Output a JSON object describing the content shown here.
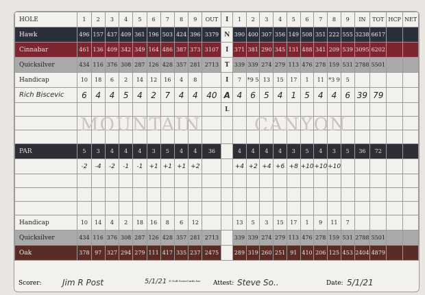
{
  "header": {
    "label": "HOLE",
    "front": [
      "1",
      "2",
      "3",
      "4",
      "5",
      "6",
      "7",
      "8",
      "9"
    ],
    "out": "OUT",
    "back": [
      "1",
      "2",
      "3",
      "4",
      "5",
      "6",
      "7",
      "8",
      "9"
    ],
    "in": "IN",
    "tot": "TOT",
    "hcp": "HCP",
    "net": "NET"
  },
  "initial": [
    "I",
    "N",
    "I",
    "T",
    "I",
    "A",
    "L"
  ],
  "tees_top": [
    {
      "cls": "hawk",
      "name": "Hawk",
      "front": [
        "496",
        "157",
        "437",
        "409",
        "361",
        "196",
        "503",
        "424",
        "396"
      ],
      "out": "3379",
      "back": [
        "390",
        "400",
        "307",
        "356",
        "149",
        "508",
        "351",
        "222",
        "555"
      ],
      "in": "3238",
      "tot": "6617"
    },
    {
      "cls": "cinn",
      "name": "Cinnabar",
      "front": [
        "461",
        "136",
        "409",
        "342",
        "349",
        "164",
        "486",
        "387",
        "373"
      ],
      "out": "3107",
      "back": [
        "371",
        "381",
        "290",
        "345",
        "131",
        "488",
        "341",
        "209",
        "539"
      ],
      "in": "3095",
      "tot": "6202"
    },
    {
      "cls": "quick",
      "name": "Quicksilver",
      "front": [
        "434",
        "116",
        "376",
        "308",
        "287",
        "126",
        "428",
        "357",
        "281"
      ],
      "out": "2713",
      "back": [
        "339",
        "339",
        "274",
        "279",
        "113",
        "476",
        "278",
        "159",
        "531"
      ],
      "in": "2788",
      "tot": "5501"
    },
    {
      "cls": "",
      "name": "Handicap",
      "front": [
        "10",
        "18",
        "6",
        "2",
        "14",
        "12",
        "16",
        "4",
        "8"
      ],
      "out": "",
      "back": [
        "7",
        "*9 5",
        "13",
        "15",
        "17",
        "1",
        "11",
        "*3 9",
        "5"
      ],
      "in": "",
      "tot": ""
    }
  ],
  "player": {
    "name": "Rich Biscevic",
    "front": [
      "6",
      "4",
      "4",
      "5",
      "4",
      "2",
      "7",
      "4",
      "4"
    ],
    "out": "40",
    "back": [
      "4",
      "6",
      "5",
      "4",
      "1",
      "5",
      "4",
      "4",
      "6"
    ],
    "in": "39",
    "tot": "79"
  },
  "watermark": {
    "left": "MOUNTAIN",
    "right": "CANYON"
  },
  "par": {
    "name": "PAR",
    "front": [
      "5",
      "3",
      "4",
      "4",
      "4",
      "3",
      "5",
      "4",
      "4"
    ],
    "out": "36",
    "back": [
      "4",
      "4",
      "4",
      "4",
      "3",
      "5",
      "4",
      "3",
      "5"
    ],
    "in": "36",
    "tot": "72"
  },
  "par_diff": {
    "front": [
      "-2",
      "-4",
      "-2",
      "-1",
      "-1",
      "+1",
      "+1",
      "+1",
      "+2"
    ],
    "back": [
      "+4",
      "+2",
      "+4",
      "+6",
      "+8",
      "+10",
      "+10",
      "+10",
      ""
    ]
  },
  "tees_bottom": [
    {
      "cls": "",
      "name": "Handicap",
      "front": [
        "10",
        "14",
        "4",
        "2",
        "18",
        "16",
        "8",
        "6",
        "12"
      ],
      "out": "",
      "back": [
        "13",
        "5",
        "3",
        "15",
        "17",
        "1",
        "9",
        "11",
        "7"
      ],
      "in": "",
      "tot": ""
    },
    {
      "cls": "quick",
      "name": "Quicksilver",
      "front": [
        "434",
        "116",
        "376",
        "308",
        "287",
        "126",
        "428",
        "357",
        "281"
      ],
      "out": "2713",
      "back": [
        "339",
        "339",
        "274",
        "279",
        "113",
        "476",
        "278",
        "159",
        "531"
      ],
      "in": "2788",
      "tot": "5501"
    },
    {
      "cls": "oak",
      "name": "Oak",
      "front": [
        "378",
        "97",
        "327",
        "294",
        "279",
        "111",
        "417",
        "335",
        "237"
      ],
      "out": "2475",
      "back": [
        "289",
        "319",
        "260",
        "251",
        "91",
        "410",
        "206",
        "125",
        "453"
      ],
      "in": "2404",
      "tot": "4879"
    }
  ],
  "footer": {
    "scorer_label": "Scorer:",
    "scorer_sig": "Jim R Post",
    "scorer_date": "5/1/21",
    "copyright": "© Golf ScoreCards Inc.",
    "attest_label": "Attest:",
    "attest_sig": "Steve So..",
    "date_label": "Date:",
    "date_value": "5/1/21"
  },
  "colors": {
    "hawk": "#2b2f3c",
    "cinnabar": "#7e2630",
    "quicksilver": "#a9a9a9",
    "oak": "#5a2c26",
    "par": "#2e2f36"
  }
}
